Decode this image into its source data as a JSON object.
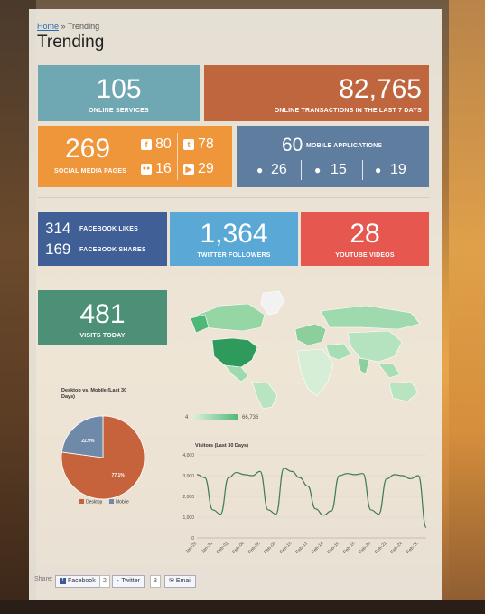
{
  "breadcrumb": {
    "home": "Home",
    "separator": "»",
    "current": "Trending"
  },
  "page_title": "Trending",
  "tiles": {
    "online_services": {
      "value": "105",
      "label": "ONLINE SERVICES",
      "color": "#6fa7b3"
    },
    "online_transactions": {
      "value": "82,765",
      "label": "ONLINE TRANSACTIONS IN THE LAST 7 DAYS",
      "color": "#c0663f"
    },
    "social_media": {
      "value": "269",
      "label": "SOCIAL MEDIA PAGES",
      "color": "#f0963a",
      "facebook": "80",
      "twitter": "78",
      "flickr": "16",
      "youtube": "29"
    },
    "mobile_apps": {
      "value": "60",
      "label": "MOBILE APPLICATIONS",
      "color": "#5f7d9e",
      "apple": "26",
      "android": "15",
      "blackberry": "19"
    },
    "facebook_stats": {
      "likes": "314",
      "likes_label": "FACEBOOK LIKES",
      "shares": "169",
      "shares_label": "FACEBOOK SHARES",
      "color": "#3f5f96"
    },
    "twitter_followers": {
      "value": "1,364",
      "label": "TWITTER FOLLOWERS",
      "color": "#59a8d6"
    },
    "youtube_videos": {
      "value": "28",
      "label": "YOUTUBE VIDEOS",
      "color": "#e5574f"
    },
    "visits_today": {
      "value": "481",
      "label": "VISITS TODAY",
      "color": "#4b9077"
    }
  },
  "map_legend": {
    "min": "4",
    "max": "66,736"
  },
  "share": {
    "label": "Share:",
    "facebook": "Facebook",
    "facebook_count": "2",
    "twitter": "Twitter",
    "twitter_count": "3",
    "email": "Email"
  },
  "chart_data": [
    {
      "type": "pie",
      "title": "Desktop vs. Mobile (Last 30 Days)",
      "slices": [
        {
          "name": "Desktop",
          "value": 77.1,
          "label": "77.1%",
          "color": "#c6633c"
        },
        {
          "name": "Mobile",
          "value": 22.9,
          "label": "22.9%",
          "color": "#6f89a8"
        }
      ],
      "legend": "bottom"
    },
    {
      "type": "line",
      "title": "Visitors (Last 30 Days)",
      "x": [
        "Jan-29",
        "Jan-30",
        "Jan-31",
        "Feb-01",
        "Feb-02",
        "Feb-03",
        "Feb-04",
        "Feb-05",
        "Feb-06",
        "Feb-07",
        "Feb-08",
        "Feb-09",
        "Feb-10",
        "Feb-11",
        "Feb-12",
        "Feb-13",
        "Feb-14",
        "Feb-15",
        "Feb-16",
        "Feb-17",
        "Feb-18",
        "Feb-19",
        "Feb-20",
        "Feb-21",
        "Feb-22",
        "Feb-23",
        "Feb-24",
        "Feb-25",
        "Feb-26",
        "Feb-27"
      ],
      "xticks": [
        "Jan-29",
        "Jan-31",
        "Feb-02",
        "Feb-04",
        "Feb-06",
        "Feb-08",
        "Feb-10",
        "Feb-12",
        "Feb-14",
        "Feb-16",
        "Feb-18",
        "Feb-20",
        "Feb-22",
        "Feb-24",
        "Feb-26"
      ],
      "values": [
        3050,
        2900,
        1350,
        1150,
        2900,
        3150,
        3050,
        3000,
        3200,
        1350,
        1150,
        3350,
        3200,
        2900,
        2500,
        1400,
        1100,
        1300,
        3000,
        3100,
        3050,
        3100,
        1350,
        1150,
        2850,
        3050,
        3000,
        2850,
        3000,
        500
      ],
      "ylim": [
        0,
        4000
      ],
      "yticks": [
        "0",
        "1,000",
        "2,000",
        "3,000",
        "4,000"
      ],
      "color": "#3f7d4e"
    }
  ]
}
